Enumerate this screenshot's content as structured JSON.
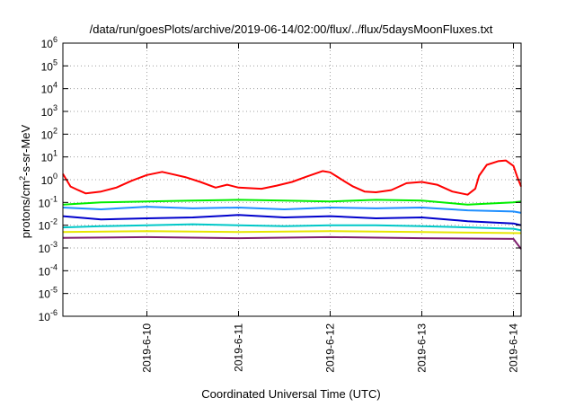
{
  "chart_data": {
    "type": "line",
    "title": "/data/run/goesPlots/archive/2019-06-14/02:00/flux/../flux/5daysMoonFluxes.txt",
    "xlabel": "Coordinated Universal Time (UTC)",
    "ylabel": {
      "prefix": "protons/cm",
      "sup": "2",
      "suffix": "-s-sr-MeV"
    },
    "y_scale": "log",
    "ylim_exponents": [
      -6,
      6
    ],
    "y_ticks": [
      {
        "base": "10",
        "exp": "-6"
      },
      {
        "base": "10",
        "exp": "-5"
      },
      {
        "base": "10",
        "exp": "-4"
      },
      {
        "base": "10",
        "exp": "-3"
      },
      {
        "base": "10",
        "exp": "-2"
      },
      {
        "base": "10",
        "exp": "-1"
      },
      {
        "base": "10",
        "exp": "0"
      },
      {
        "base": "10",
        "exp": "1"
      },
      {
        "base": "10",
        "exp": "2"
      },
      {
        "base": "10",
        "exp": "3"
      },
      {
        "base": "10",
        "exp": "4"
      },
      {
        "base": "10",
        "exp": "5"
      },
      {
        "base": "10",
        "exp": "6"
      }
    ],
    "xlim": [
      "2019-06-09T02:00",
      "2019-06-14T02:00"
    ],
    "x_ticks": [
      {
        "label": "2019-6-10",
        "t": "2019-06-10T00:00"
      },
      {
        "label": "2019-6-11",
        "t": "2019-06-11T00:00"
      },
      {
        "label": "2019-6-12",
        "t": "2019-06-12T00:00"
      },
      {
        "label": "2019-6-13",
        "t": "2019-06-13T00:00"
      },
      {
        "label": "2019-6-14",
        "t": "2019-06-14T00:00"
      }
    ],
    "grid": true,
    "legend": "none",
    "series": [
      {
        "color": "#ff0000",
        "width": 2,
        "points": [
          [
            "2019-06-09T02:00",
            1.8
          ],
          [
            "2019-06-09T04:00",
            0.5
          ],
          [
            "2019-06-09T06:00",
            0.35
          ],
          [
            "2019-06-09T08:00",
            0.25
          ],
          [
            "2019-06-09T12:00",
            0.3
          ],
          [
            "2019-06-09T16:00",
            0.45
          ],
          [
            "2019-06-09T20:00",
            0.9
          ],
          [
            "2019-06-10T00:00",
            1.6
          ],
          [
            "2019-06-10T04:00",
            2.2
          ],
          [
            "2019-06-10T07:00",
            1.7
          ],
          [
            "2019-06-10T10:00",
            1.3
          ],
          [
            "2019-06-10T14:00",
            0.8
          ],
          [
            "2019-06-10T18:00",
            0.45
          ],
          [
            "2019-06-10T21:00",
            0.6
          ],
          [
            "2019-06-11T00:00",
            0.45
          ],
          [
            "2019-06-11T06:00",
            0.4
          ],
          [
            "2019-06-11T10:00",
            0.55
          ],
          [
            "2019-06-11T14:00",
            0.8
          ],
          [
            "2019-06-11T18:00",
            1.4
          ],
          [
            "2019-06-11T22:00",
            2.4
          ],
          [
            "2019-06-12T00:00",
            2.1
          ],
          [
            "2019-06-12T02:00",
            1.3
          ],
          [
            "2019-06-12T04:00",
            0.8
          ],
          [
            "2019-06-12T06:00",
            0.5
          ],
          [
            "2019-06-12T09:00",
            0.3
          ],
          [
            "2019-06-12T12:00",
            0.28
          ],
          [
            "2019-06-12T16:00",
            0.35
          ],
          [
            "2019-06-12T20:00",
            0.7
          ],
          [
            "2019-06-13T00:00",
            0.8
          ],
          [
            "2019-06-13T04:00",
            0.6
          ],
          [
            "2019-06-13T08:00",
            0.3
          ],
          [
            "2019-06-13T12:00",
            0.22
          ],
          [
            "2019-06-13T14:00",
            0.4
          ],
          [
            "2019-06-13T15:00",
            1.5
          ],
          [
            "2019-06-13T17:00",
            4.5
          ],
          [
            "2019-06-13T20:00",
            6.5
          ],
          [
            "2019-06-13T22:00",
            7
          ],
          [
            "2019-06-14T00:00",
            4
          ],
          [
            "2019-06-14T01:00",
            1.3
          ],
          [
            "2019-06-14T02:00",
            0.5
          ]
        ]
      },
      {
        "color": "#00ee00",
        "width": 2,
        "points": [
          [
            "2019-06-09T02:00",
            0.08
          ],
          [
            "2019-06-09T12:00",
            0.1
          ],
          [
            "2019-06-10T00:00",
            0.11
          ],
          [
            "2019-06-10T12:00",
            0.12
          ],
          [
            "2019-06-11T00:00",
            0.13
          ],
          [
            "2019-06-11T12:00",
            0.12
          ],
          [
            "2019-06-12T00:00",
            0.11
          ],
          [
            "2019-06-12T12:00",
            0.13
          ],
          [
            "2019-06-13T00:00",
            0.12
          ],
          [
            "2019-06-13T12:00",
            0.08
          ],
          [
            "2019-06-14T00:00",
            0.1
          ],
          [
            "2019-06-14T02:00",
            0.11
          ]
        ]
      },
      {
        "color": "#1f8fff",
        "width": 2,
        "points": [
          [
            "2019-06-09T02:00",
            0.06
          ],
          [
            "2019-06-09T12:00",
            0.05
          ],
          [
            "2019-06-10T00:00",
            0.065
          ],
          [
            "2019-06-10T12:00",
            0.055
          ],
          [
            "2019-06-11T00:00",
            0.06
          ],
          [
            "2019-06-11T12:00",
            0.05
          ],
          [
            "2019-06-12T00:00",
            0.06
          ],
          [
            "2019-06-12T12:00",
            0.055
          ],
          [
            "2019-06-13T00:00",
            0.06
          ],
          [
            "2019-06-13T12:00",
            0.045
          ],
          [
            "2019-06-14T00:00",
            0.04
          ],
          [
            "2019-06-14T02:00",
            0.035
          ]
        ]
      },
      {
        "color": "#0000cc",
        "width": 2,
        "points": [
          [
            "2019-06-09T02:00",
            0.025
          ],
          [
            "2019-06-09T12:00",
            0.018
          ],
          [
            "2019-06-10T00:00",
            0.02
          ],
          [
            "2019-06-10T12:00",
            0.022
          ],
          [
            "2019-06-11T00:00",
            0.028
          ],
          [
            "2019-06-11T12:00",
            0.022
          ],
          [
            "2019-06-12T00:00",
            0.025
          ],
          [
            "2019-06-12T12:00",
            0.02
          ],
          [
            "2019-06-13T00:00",
            0.022
          ],
          [
            "2019-06-13T12:00",
            0.015
          ],
          [
            "2019-06-14T00:00",
            0.012
          ],
          [
            "2019-06-14T02:00",
            0.01
          ]
        ]
      },
      {
        "color": "#00c8c8",
        "width": 2,
        "points": [
          [
            "2019-06-09T02:00",
            0.008
          ],
          [
            "2019-06-09T12:00",
            0.009
          ],
          [
            "2019-06-10T00:00",
            0.01
          ],
          [
            "2019-06-10T12:00",
            0.011
          ],
          [
            "2019-06-11T00:00",
            0.01
          ],
          [
            "2019-06-11T12:00",
            0.009
          ],
          [
            "2019-06-12T00:00",
            0.01
          ],
          [
            "2019-06-12T12:00",
            0.01
          ],
          [
            "2019-06-13T00:00",
            0.009
          ],
          [
            "2019-06-13T12:00",
            0.008
          ],
          [
            "2019-06-14T00:00",
            0.007
          ],
          [
            "2019-06-14T02:00",
            0.006
          ]
        ]
      },
      {
        "color": "#e6e600",
        "width": 2,
        "points": [
          [
            "2019-06-09T02:00",
            0.005
          ],
          [
            "2019-06-10T00:00",
            0.0055
          ],
          [
            "2019-06-11T00:00",
            0.005
          ],
          [
            "2019-06-12T00:00",
            0.0055
          ],
          [
            "2019-06-13T00:00",
            0.005
          ],
          [
            "2019-06-14T02:00",
            0.0045
          ]
        ]
      },
      {
        "color": "#7f1e6e",
        "width": 2,
        "points": [
          [
            "2019-06-09T02:00",
            0.0028
          ],
          [
            "2019-06-10T00:00",
            0.003
          ],
          [
            "2019-06-11T00:00",
            0.0027
          ],
          [
            "2019-06-12T00:00",
            0.003
          ],
          [
            "2019-06-13T00:00",
            0.0027
          ],
          [
            "2019-06-14T00:00",
            0.0025
          ],
          [
            "2019-06-14T02:00",
            0.0009
          ]
        ]
      }
    ]
  }
}
